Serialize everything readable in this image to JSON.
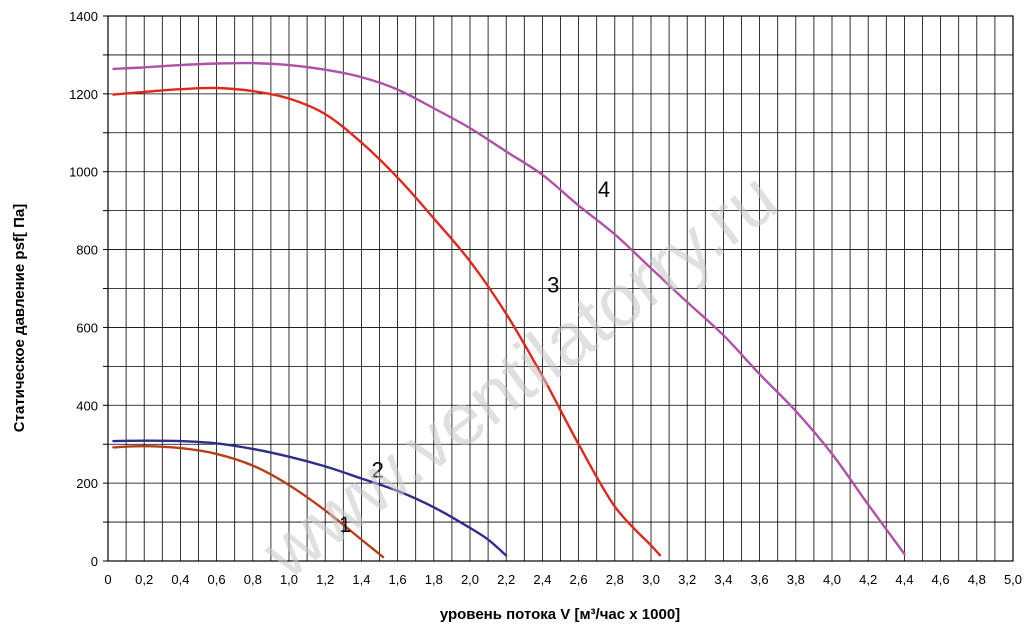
{
  "chart_data": {
    "type": "line",
    "xlabel": "уровень потока  V [м³/час x 1000]",
    "ylabel": "Статическое давление  psf[ Па]",
    "xlim": [
      0,
      5.0
    ],
    "ylim": [
      0,
      1400
    ],
    "x_ticks": [
      "0",
      "0,2",
      "0,4",
      "0,6",
      "0,8",
      "1,0",
      "1,2",
      "1,4",
      "1,6",
      "1,8",
      "2,0",
      "2,2",
      "2,4",
      "2,6",
      "2,8",
      "3,0",
      "3,2",
      "3,4",
      "3,6",
      "3,8",
      "4,0",
      "4,2",
      "4,4",
      "4,6",
      "4,8",
      "5,0"
    ],
    "y_ticks": [
      "0",
      "200",
      "400",
      "600",
      "800",
      "1000",
      "1200",
      "1400"
    ],
    "grid": true,
    "watermark": "www.ventilatorry.ru",
    "series": [
      {
        "name": "1",
        "color": "#b5411a",
        "x": [
          0.03,
          0.2,
          0.4,
          0.6,
          0.8,
          1.0,
          1.2,
          1.4,
          1.52
        ],
        "y": [
          292,
          295,
          290,
          275,
          245,
          195,
          130,
          55,
          10
        ]
      },
      {
        "name": "2",
        "color": "#2e2e8a",
        "x": [
          0.03,
          0.2,
          0.4,
          0.6,
          0.8,
          1.0,
          1.2,
          1.4,
          1.6,
          1.8,
          2.0,
          2.1,
          2.2
        ],
        "y": [
          308,
          309,
          308,
          302,
          288,
          268,
          243,
          212,
          180,
          138,
          85,
          55,
          14
        ]
      },
      {
        "name": "3",
        "color": "#e0281c",
        "x": [
          0.03,
          0.2,
          0.4,
          0.6,
          0.8,
          1.0,
          1.2,
          1.4,
          1.6,
          1.8,
          2.0,
          2.2,
          2.4,
          2.6,
          2.8,
          3.0,
          3.05
        ],
        "y": [
          1198,
          1205,
          1212,
          1215,
          1207,
          1188,
          1148,
          1075,
          985,
          880,
          770,
          635,
          475,
          300,
          140,
          40,
          15
        ]
      },
      {
        "name": "4",
        "color": "#b050a8",
        "x": [
          0.03,
          0.2,
          0.4,
          0.6,
          0.8,
          1.0,
          1.2,
          1.4,
          1.6,
          1.8,
          2.0,
          2.2,
          2.4,
          2.6,
          2.8,
          3.0,
          3.2,
          3.4,
          3.6,
          3.8,
          4.0,
          4.2,
          4.4
        ],
        "y": [
          1264,
          1268,
          1274,
          1278,
          1279,
          1274,
          1262,
          1243,
          1211,
          1163,
          1112,
          1052,
          992,
          913,
          839,
          752,
          665,
          580,
          480,
          385,
          275,
          145,
          18
        ]
      }
    ]
  }
}
